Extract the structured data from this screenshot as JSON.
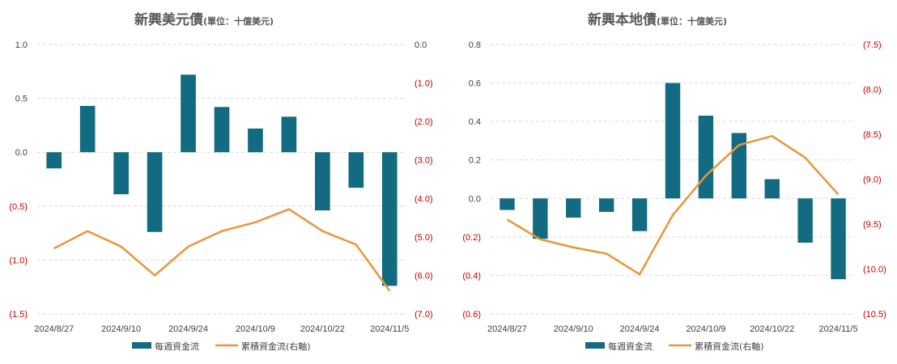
{
  "colors": {
    "bar": "#136b82",
    "line": "#e8963a",
    "negative_tick": "#c00000",
    "tick": "#404040",
    "title": "#595959"
  },
  "legend": {
    "bar_label": "每週資金流",
    "line_label": "累積資金流(右軸)"
  },
  "chart_data": [
    {
      "type": "bar+line",
      "title": "新興美元債",
      "title_unit": "(單位：十億美元)",
      "x_labels": [
        "2024/8/27",
        "2024/9/10",
        "2024/9/24",
        "2024/10/9",
        "2024/10/22",
        "2024/11/5"
      ],
      "left_axis": {
        "min": -1.5,
        "max": 1.0,
        "ticks": [
          1.0,
          0.5,
          0.0,
          -0.5,
          -1.0,
          -1.5
        ],
        "tick_labels": [
          "1.0",
          "0.5",
          "0.0",
          "(0.5)",
          "(1.0)",
          "(1.5)"
        ]
      },
      "right_axis": {
        "min": -7.0,
        "max": 0.0,
        "ticks": [
          0.0,
          -1.0,
          -2.0,
          -3.0,
          -4.0,
          -5.0,
          -6.0,
          -7.0
        ],
        "tick_labels": [
          "0.0",
          "(1.0)",
          "(2.0)",
          "(3.0)",
          "(4.0)",
          "(5.0)",
          "(6.0)",
          "(7.0)"
        ]
      },
      "series": [
        {
          "name": "每週資金流",
          "type": "bar",
          "axis": "left",
          "values": [
            -0.15,
            0.43,
            -0.39,
            -0.74,
            0.72,
            0.42,
            0.22,
            0.33,
            -0.54,
            -0.33,
            -1.24
          ]
        },
        {
          "name": "累積資金流(右軸)",
          "type": "line",
          "axis": "right",
          "values": [
            -5.3,
            -4.85,
            -5.25,
            -6.0,
            -5.25,
            -4.85,
            -4.62,
            -4.28,
            -4.85,
            -5.2,
            -6.4
          ]
        }
      ]
    },
    {
      "type": "bar+line",
      "title": "新興本地債",
      "title_unit": "(單位：十億美元)",
      "x_labels": [
        "2024/8/27",
        "2024/9/10",
        "2024/9/24",
        "2024/10/9",
        "2024/10/22",
        "2024/11/5"
      ],
      "left_axis": {
        "min": -0.6,
        "max": 0.8,
        "ticks": [
          0.8,
          0.6,
          0.4,
          0.2,
          0.0,
          -0.2,
          -0.4,
          -0.6
        ],
        "tick_labels": [
          "0.8",
          "0.6",
          "0.4",
          "0.2",
          "0.0",
          "(0.2)",
          "(0.4)",
          "(0.6)"
        ]
      },
      "right_axis": {
        "min": -10.5,
        "max": -7.5,
        "ticks": [
          -7.5,
          -8.0,
          -8.5,
          -9.0,
          -9.5,
          -10.0,
          -10.5
        ],
        "tick_labels": [
          "(7.5)",
          "(8.0)",
          "(8.5)",
          "(9.0)",
          "(9.5)",
          "(10.0)",
          "(10.5)"
        ]
      },
      "series": [
        {
          "name": "每週資金流",
          "type": "bar",
          "axis": "left",
          "values": [
            -0.06,
            -0.21,
            -0.1,
            -0.07,
            -0.17,
            0.6,
            0.43,
            0.34,
            0.1,
            -0.23,
            -0.42
          ]
        },
        {
          "name": "累積資金流(右軸)",
          "type": "line",
          "axis": "right",
          "values": [
            -9.45,
            -9.67,
            -9.76,
            -9.83,
            -10.06,
            -9.4,
            -8.96,
            -8.62,
            -8.52,
            -8.76,
            -9.17
          ]
        }
      ]
    }
  ]
}
